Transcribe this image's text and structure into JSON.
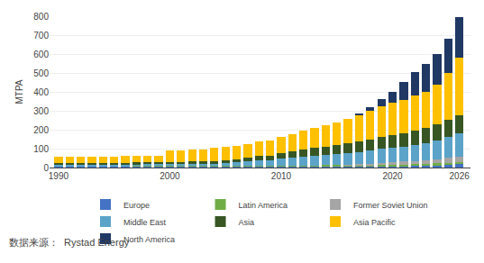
{
  "chart_data": {
    "type": "bar",
    "stacked": true,
    "x": [
      1990,
      1991,
      1992,
      1993,
      1994,
      1995,
      1996,
      1997,
      1998,
      1999,
      2000,
      2001,
      2002,
      2003,
      2004,
      2005,
      2006,
      2007,
      2008,
      2009,
      2010,
      2011,
      2012,
      2013,
      2014,
      2015,
      2016,
      2017,
      2018,
      2019,
      2020,
      2021,
      2022,
      2023,
      2024,
      2025,
      2026
    ],
    "series": [
      {
        "name": "Europe",
        "color": "#4472C4",
        "values": [
          5,
          5,
          5,
          5,
          5,
          5,
          5,
          5,
          5,
          5,
          5,
          5,
          5,
          5,
          5,
          5,
          5,
          6,
          6,
          6,
          6,
          6,
          7,
          7,
          7,
          7,
          7,
          8,
          8,
          8,
          8,
          9,
          10,
          12,
          14,
          16,
          18
        ]
      },
      {
        "name": "Latin America",
        "color": "#70AD47",
        "values": [
          3,
          3,
          3,
          3,
          3,
          3,
          3,
          3,
          3,
          3,
          3,
          3,
          3,
          3,
          3,
          3,
          4,
          4,
          4,
          4,
          4,
          4,
          4,
          4,
          5,
          5,
          5,
          5,
          5,
          6,
          6,
          6,
          7,
          8,
          9,
          10,
          12
        ]
      },
      {
        "name": "Former Soviet Union",
        "color": "#A5A5A5",
        "values": [
          0,
          0,
          0,
          0,
          0,
          0,
          0,
          0,
          0,
          0,
          0,
          0,
          0,
          0,
          0,
          0,
          0,
          0,
          0,
          0,
          0,
          0,
          0,
          0,
          0,
          0,
          3,
          5,
          8,
          12,
          14,
          16,
          18,
          20,
          22,
          25,
          28
        ]
      },
      {
        "name": "Middle East",
        "color": "#5BA3C9",
        "values": [
          8,
          8,
          8,
          8,
          8,
          9,
          9,
          10,
          10,
          10,
          10,
          11,
          12,
          12,
          13,
          15,
          18,
          22,
          28,
          30,
          38,
          42,
          48,
          52,
          55,
          58,
          60,
          65,
          68,
          72,
          75,
          78,
          85,
          90,
          100,
          110,
          125
        ]
      },
      {
        "name": "Asia",
        "color": "#375623",
        "values": [
          8,
          8,
          8,
          8,
          9,
          9,
          9,
          9,
          10,
          10,
          10,
          11,
          12,
          13,
          14,
          15,
          17,
          20,
          22,
          24,
          28,
          32,
          36,
          40,
          44,
          48,
          52,
          56,
          60,
          65,
          68,
          72,
          76,
          80,
          85,
          90,
          95
        ]
      },
      {
        "name": "Asia Pacific",
        "color": "#FFC000",
        "values": [
          35,
          35,
          33,
          33,
          33,
          33,
          34,
          34,
          34,
          35,
          62,
          62,
          63,
          64,
          68,
          70,
          68,
          72,
          78,
          80,
          85,
          92,
          98,
          105,
          112,
          120,
          130,
          140,
          152,
          162,
          170,
          178,
          185,
          192,
          210,
          250,
          305
        ]
      },
      {
        "name": "North America",
        "color": "#1F3864",
        "values": [
          0,
          0,
          0,
          0,
          0,
          0,
          0,
          0,
          0,
          0,
          0,
          0,
          0,
          0,
          0,
          0,
          0,
          0,
          0,
          0,
          0,
          0,
          0,
          0,
          0,
          0,
          0,
          8,
          20,
          38,
          60,
          95,
          125,
          145,
          160,
          180,
          210
        ]
      }
    ],
    "y_label": "MTPA",
    "xlim": [
      1989.2,
      2027.0
    ],
    "xticks": [
      1990,
      2000,
      2010,
      2020,
      2026
    ],
    "ylim": [
      0,
      800
    ],
    "yticks": [
      0,
      100,
      200,
      300,
      400,
      500,
      600,
      700,
      800
    ],
    "grid": true,
    "legend": "bottom",
    "annotations": [
      "数据来源：  Rystad Energy"
    ]
  }
}
